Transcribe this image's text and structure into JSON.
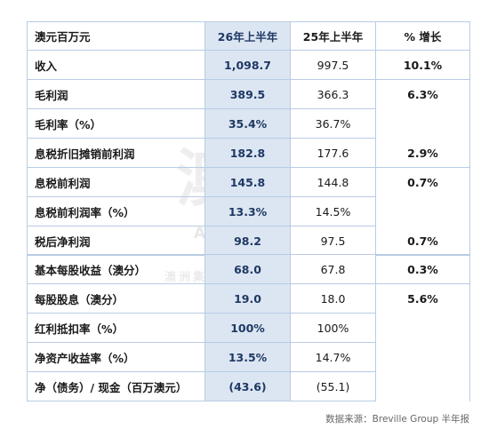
{
  "top_table": {
    "header": {
      "label": "澳元百万元",
      "h1": "26年上半年",
      "h2": "25年上半年",
      "change": "% 增长"
    },
    "rows": [
      {
        "label": "收入",
        "h1": "1,098.7",
        "h2": "997.5",
        "change": "10.1%"
      },
      {
        "label": "毛利润",
        "h1": "389.5",
        "h2": "366.3",
        "change": "6.3%"
      },
      {
        "label": "毛利率（%）",
        "h1": "35.4%",
        "h2": "36.7%",
        "change": ""
      },
      {
        "label": "息税折旧摊销前利润",
        "h1": "182.8",
        "h2": "177.6",
        "change": "2.9%"
      },
      {
        "label": "息税前利润",
        "h1": "145.8",
        "h2": "144.8",
        "change": "0.7%"
      },
      {
        "label": "息税前利润率（%）",
        "h1": "13.3%",
        "h2": "14.5%",
        "change": ""
      },
      {
        "label": "税后净利润",
        "h1": "98.2",
        "h2": "97.5",
        "change": "0.7%"
      }
    ]
  },
  "bottom_table": {
    "rows": [
      {
        "label": "基本每股收益（澳分）",
        "h1": "68.0",
        "h2": "67.8",
        "change": "0.3%"
      },
      {
        "label": "每股股息（澳分）",
        "h1": "19.0",
        "h2": "18.0",
        "change": "5.6%"
      },
      {
        "label": "红利抵扣率（%）",
        "h1": "100%",
        "h2": "100%",
        "change": ""
      },
      {
        "label": "净资产收益率（%）",
        "h1": "13.5%",
        "h2": "14.7%",
        "change": ""
      },
      {
        "label": "净（债务）/ 现金（百万澳元）",
        "h1": "(43.6)",
        "h2": "(55.1)",
        "change": ""
      }
    ]
  },
  "watermark": {
    "main": "澳财",
    "sub": "ALLBIZ®",
    "sub2": "澳洲集团旗下企业"
  },
  "source": "数据来源：Breville Group 半年报"
}
